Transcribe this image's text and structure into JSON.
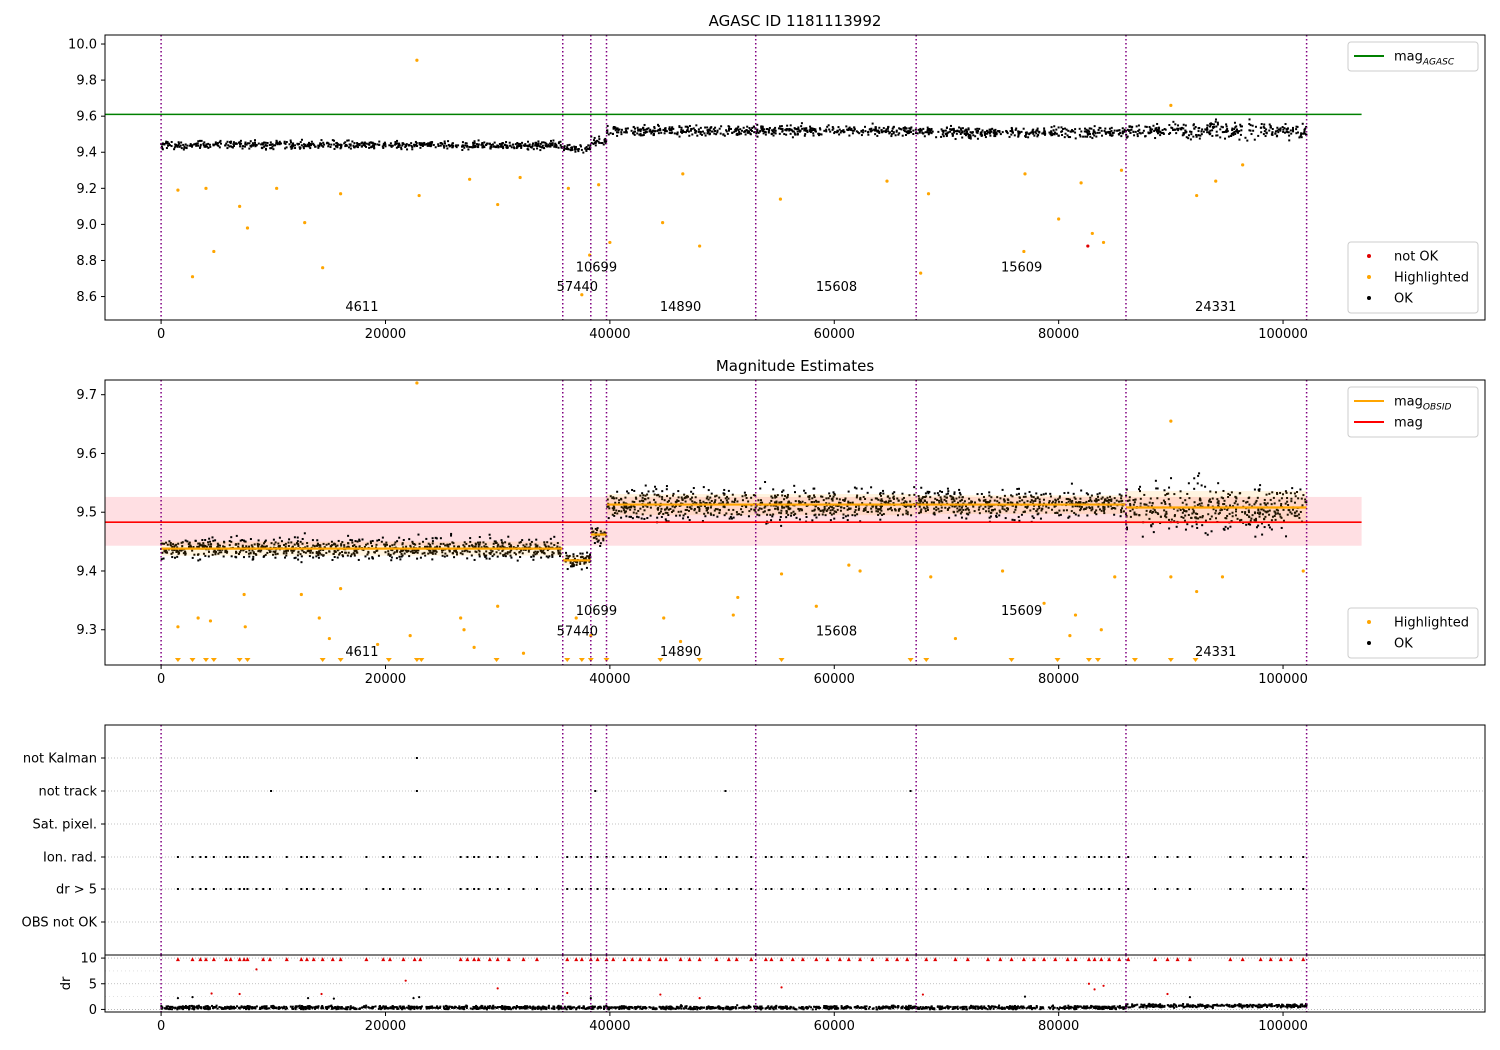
{
  "chart_data": [
    {
      "type": "scatter",
      "title": "AGASC ID 1181113992",
      "xlim": [
        -5000,
        118000
      ],
      "ylim": [
        8.47,
        10.05
      ],
      "xticks": [
        0,
        20000,
        40000,
        60000,
        80000,
        100000
      ],
      "yticks": [
        8.6,
        8.8,
        9.0,
        9.2,
        9.4,
        9.6,
        9.8,
        10.0
      ],
      "grid": false,
      "lines": [
        {
          "name": "mag_AGASC",
          "label_main": "mag",
          "label_sub": "AGASC",
          "y": 9.61,
          "x": [
            -5000,
            107000
          ],
          "color": "#008000"
        }
      ],
      "segments": [
        {
          "x": [
            0,
            35800
          ],
          "level": 9.44,
          "spread": 0.035
        },
        {
          "x": [
            35800,
            38300
          ],
          "level": 9.42,
          "spread": 0.03
        },
        {
          "x": [
            38300,
            39700
          ],
          "level": 9.46,
          "spread": 0.035
        },
        {
          "x": [
            39700,
            53000
          ],
          "level": 9.52,
          "spread": 0.045
        },
        {
          "x": [
            53000,
            67300
          ],
          "level": 9.52,
          "spread": 0.045
        },
        {
          "x": [
            67300,
            86000
          ],
          "level": 9.51,
          "spread": 0.045
        },
        {
          "x": [
            86000,
            102100
          ],
          "level": 9.52,
          "spread": 0.07
        }
      ],
      "highlighted_points": [
        {
          "x": 2800,
          "y": 8.71
        },
        {
          "x": 4700,
          "y": 8.85
        },
        {
          "x": 7700,
          "y": 8.98
        },
        {
          "x": 12800,
          "y": 9.01
        },
        {
          "x": 14400,
          "y": 8.76
        },
        {
          "x": 22800,
          "y": 9.91
        },
        {
          "x": 30000,
          "y": 9.11
        },
        {
          "x": 37500,
          "y": 8.61
        },
        {
          "x": 38200,
          "y": 8.83
        },
        {
          "x": 40000,
          "y": 8.9
        },
        {
          "x": 44700,
          "y": 9.01
        },
        {
          "x": 48000,
          "y": 8.88
        },
        {
          "x": 55200,
          "y": 9.14
        },
        {
          "x": 67700,
          "y": 8.73
        },
        {
          "x": 76900,
          "y": 8.85
        },
        {
          "x": 80000,
          "y": 9.03
        },
        {
          "x": 83000,
          "y": 8.95
        },
        {
          "x": 84000,
          "y": 8.9
        },
        {
          "x": 90000,
          "y": 9.66
        },
        {
          "x": 92300,
          "y": 9.16
        },
        {
          "x": 1500,
          "y": 9.19
        },
        {
          "x": 4000,
          "y": 9.2
        },
        {
          "x": 7000,
          "y": 9.1
        },
        {
          "x": 10300,
          "y": 9.2
        },
        {
          "x": 16000,
          "y": 9.17
        },
        {
          "x": 23000,
          "y": 9.16
        },
        {
          "x": 27500,
          "y": 9.25
        },
        {
          "x": 32000,
          "y": 9.26
        },
        {
          "x": 36300,
          "y": 9.2
        },
        {
          "x": 39000,
          "y": 9.22
        },
        {
          "x": 46500,
          "y": 9.28
        },
        {
          "x": 64700,
          "y": 9.24
        },
        {
          "x": 68400,
          "y": 9.17
        },
        {
          "x": 77000,
          "y": 9.28
        },
        {
          "x": 82000,
          "y": 9.23
        },
        {
          "x": 85600,
          "y": 9.3
        },
        {
          "x": 94000,
          "y": 9.24
        },
        {
          "x": 96400,
          "y": 9.33
        }
      ],
      "notok_points": [
        {
          "x": 82600,
          "y": 8.88
        }
      ],
      "obs_labels": [
        {
          "text": "4611",
          "x": 17900,
          "y": 8.52
        },
        {
          "text": "57440",
          "x": 37100,
          "y": 8.63
        },
        {
          "text": "10699",
          "x": 38800,
          "y": 8.74
        },
        {
          "text": "14890",
          "x": 46300,
          "y": 8.52
        },
        {
          "text": "15608",
          "x": 60200,
          "y": 8.63
        },
        {
          "text": "15609",
          "x": 76700,
          "y": 8.74
        },
        {
          "text": "24331",
          "x": 94000,
          "y": 8.52
        }
      ],
      "legends": [
        {
          "position": "upper right",
          "entries": [
            {
              "kind": "line",
              "color": "#008000",
              "label_main": "mag",
              "label_sub": "AGASC"
            }
          ]
        },
        {
          "position": "lower right",
          "entries": [
            {
              "kind": "dot",
              "color": "#e00000",
              "label": "not OK"
            },
            {
              "kind": "dot",
              "color": "#ffa500",
              "label": "Highlighted"
            },
            {
              "kind": "dot",
              "color": "#000000",
              "label": "OK"
            }
          ]
        }
      ]
    },
    {
      "type": "scatter",
      "title": "Magnitude Estimates",
      "xlim": [
        -5000,
        118000
      ],
      "ylim": [
        9.24,
        9.725
      ],
      "xticks": [
        0,
        20000,
        40000,
        60000,
        80000,
        100000
      ],
      "yticks": [
        9.3,
        9.4,
        9.5,
        9.6,
        9.7
      ],
      "grid": false,
      "mag_line": {
        "name": "mag",
        "y": 9.483,
        "band": [
          9.443,
          9.526
        ],
        "x": [
          -5000,
          107000
        ],
        "color": "#ff0000",
        "band_color": "#ffc0c8"
      },
      "obsid_mags": [
        {
          "x": [
            0,
            35800
          ],
          "mag": 9.438,
          "spread": 0.03
        },
        {
          "x": [
            35800,
            38300
          ],
          "mag": 9.418,
          "spread": 0.022
        },
        {
          "x": [
            38300,
            39700
          ],
          "mag": 9.462,
          "spread": 0.025
        },
        {
          "x": [
            39700,
            53000
          ],
          "mag": 9.513,
          "spread": 0.045
        },
        {
          "x": [
            53000,
            67300
          ],
          "mag": 9.513,
          "spread": 0.045
        },
        {
          "x": [
            67300,
            86000
          ],
          "mag": 9.513,
          "spread": 0.04
        },
        {
          "x": [
            86000,
            102100
          ],
          "mag": 9.508,
          "spread": 0.07
        }
      ],
      "highlighted_points": [
        {
          "x": 22800,
          "y": 9.72
        },
        {
          "x": 90000,
          "y": 9.655
        },
        {
          "x": 1500,
          "y": 9.305
        },
        {
          "x": 3300,
          "y": 9.32
        },
        {
          "x": 4400,
          "y": 9.315
        },
        {
          "x": 7400,
          "y": 9.36
        },
        {
          "x": 7500,
          "y": 9.305
        },
        {
          "x": 12500,
          "y": 9.36
        },
        {
          "x": 14100,
          "y": 9.32
        },
        {
          "x": 15000,
          "y": 9.285
        },
        {
          "x": 16000,
          "y": 9.37
        },
        {
          "x": 19300,
          "y": 9.275
        },
        {
          "x": 22200,
          "y": 9.29
        },
        {
          "x": 26700,
          "y": 9.32
        },
        {
          "x": 27000,
          "y": 9.3
        },
        {
          "x": 27900,
          "y": 9.27
        },
        {
          "x": 30000,
          "y": 9.34
        },
        {
          "x": 32300,
          "y": 9.26
        },
        {
          "x": 37000,
          "y": 9.32
        },
        {
          "x": 38300,
          "y": 9.29
        },
        {
          "x": 44800,
          "y": 9.32
        },
        {
          "x": 46300,
          "y": 9.28
        },
        {
          "x": 51400,
          "y": 9.355
        },
        {
          "x": 51000,
          "y": 9.325
        },
        {
          "x": 55300,
          "y": 9.395
        },
        {
          "x": 58400,
          "y": 9.34
        },
        {
          "x": 61300,
          "y": 9.41
        },
        {
          "x": 62300,
          "y": 9.4
        },
        {
          "x": 68600,
          "y": 9.39
        },
        {
          "x": 70800,
          "y": 9.285
        },
        {
          "x": 75000,
          "y": 9.4
        },
        {
          "x": 78700,
          "y": 9.345
        },
        {
          "x": 81000,
          "y": 9.29
        },
        {
          "x": 81500,
          "y": 9.325
        },
        {
          "x": 83800,
          "y": 9.3
        },
        {
          "x": 85000,
          "y": 9.39
        },
        {
          "x": 90000,
          "y": 9.39
        },
        {
          "x": 92300,
          "y": 9.365
        },
        {
          "x": 94600,
          "y": 9.39
        },
        {
          "x": 101800,
          "y": 9.4
        }
      ],
      "clipped_markers_x": [
        1500,
        2800,
        4000,
        4700,
        7000,
        7700,
        14400,
        16000,
        20300,
        22800,
        23200,
        29900,
        36200,
        37500,
        38300,
        39700,
        44500,
        48000,
        55300,
        66800,
        68200,
        75800,
        79900,
        82700,
        83500,
        86800,
        90000,
        92200
      ],
      "obs_labels": [
        {
          "text": "4611",
          "x": 17900,
          "y": 9.255
        },
        {
          "text": "57440",
          "x": 37100,
          "y": 9.29
        },
        {
          "text": "10699",
          "x": 38800,
          "y": 9.325
        },
        {
          "text": "14890",
          "x": 46300,
          "y": 9.255
        },
        {
          "text": "15608",
          "x": 60200,
          "y": 9.29
        },
        {
          "text": "15609",
          "x": 76700,
          "y": 9.325
        },
        {
          "text": "24331",
          "x": 94000,
          "y": 9.255
        }
      ],
      "legends": [
        {
          "position": "upper right",
          "entries": [
            {
              "kind": "line",
              "color": "#ffa500",
              "label_main": "mag",
              "label_sub": "OBSID"
            },
            {
              "kind": "line",
              "color": "#ff0000",
              "label_main": "mag",
              "label_sub": ""
            }
          ]
        },
        {
          "position": "lower right",
          "entries": [
            {
              "kind": "dot",
              "color": "#ffa500",
              "label": "Highlighted"
            },
            {
              "kind": "dot",
              "color": "#000000",
              "label": "OK"
            }
          ]
        }
      ]
    },
    {
      "type": "scatter",
      "title": "",
      "xlim": [
        -5000,
        118000
      ],
      "categories": [
        "not Kalman",
        "not track",
        "Sat. pixel.",
        "Ion. rad.",
        "dr > 5",
        "OBS not OK"
      ],
      "grid": true,
      "flags": {
        "not Kalman": [
          22800
        ],
        "not track": [
          9800,
          22800,
          38700,
          50300,
          66800
        ],
        "Ion. rad.": [
          1500,
          2800,
          3500,
          4000,
          4700,
          5800,
          6200,
          7000,
          7400,
          7700,
          8500,
          9100,
          9700,
          11200,
          12500,
          13000,
          13600,
          14400,
          15300,
          16000,
          18300,
          19800,
          20400,
          21600,
          22600,
          23100,
          26700,
          27300,
          27900,
          28300,
          29300,
          30000,
          31000,
          32300,
          33500,
          36200,
          37000,
          37500,
          38300,
          38900,
          39700,
          40300,
          41300,
          42000,
          42700,
          43500,
          44500,
          45000,
          46300,
          47100,
          48000,
          49500,
          50600,
          51300,
          52600,
          53900,
          54400,
          55300,
          56300,
          57200,
          58400,
          59400,
          60500,
          61300,
          62300,
          63400,
          64700,
          65600,
          66500,
          68200,
          69000,
          70800,
          71900,
          73700,
          74800,
          75800,
          76900,
          77800,
          78700,
          79700,
          80800,
          81500,
          82700,
          83200,
          83800,
          84500,
          85400,
          86200,
          88600,
          89700,
          90600,
          91700,
          95300,
          96400,
          98000,
          98900,
          99800,
          100700,
          101800
        ],
        "dr > 5": [
          1500,
          2800,
          3500,
          4000,
          4700,
          5800,
          6200,
          7000,
          7400,
          7700,
          8500,
          9100,
          9700,
          11200,
          12500,
          13000,
          13600,
          14400,
          15300,
          16000,
          18300,
          19800,
          20400,
          21600,
          22600,
          23100,
          26700,
          27300,
          27900,
          28300,
          29300,
          30000,
          31000,
          32300,
          33500,
          36200,
          37000,
          37500,
          38300,
          38900,
          39700,
          40300,
          41300,
          42000,
          42700,
          43500,
          44500,
          45000,
          46300,
          47100,
          48000,
          49500,
          50600,
          51300,
          52600,
          53900,
          54400,
          55300,
          56300,
          57200,
          58400,
          59400,
          60500,
          61300,
          62300,
          63400,
          64700,
          65600,
          66500,
          68200,
          69000,
          70800,
          71900,
          73700,
          74800,
          75800,
          76900,
          77800,
          78700,
          79700,
          80800,
          81500,
          82700,
          83200,
          83800,
          84500,
          85400,
          86200,
          88600,
          89700,
          90600,
          91700,
          95300,
          96400,
          98000,
          98900,
          99800,
          100700,
          101800
        ]
      }
    },
    {
      "type": "scatter",
      "title": "",
      "xlim": [
        -5000,
        118000
      ],
      "ylim": [
        -0.5,
        10.6
      ],
      "xticks": [
        0,
        20000,
        40000,
        60000,
        80000,
        100000
      ],
      "yticks": [
        0,
        5,
        10
      ],
      "ylabel": "dr",
      "grid": true,
      "dr_high_x": [
        1500,
        2800,
        3500,
        4000,
        4700,
        5800,
        6200,
        7000,
        7400,
        7700,
        9100,
        9700,
        11200,
        12500,
        13000,
        13600,
        14400,
        15300,
        16000,
        18300,
        19800,
        20400,
        21600,
        22600,
        23100,
        26700,
        27300,
        27900,
        28300,
        29300,
        30000,
        31000,
        32300,
        33500,
        36200,
        37000,
        37500,
        38300,
        38900,
        39700,
        40300,
        41300,
        42000,
        42700,
        43500,
        44500,
        45000,
        46300,
        47100,
        48000,
        49500,
        50600,
        51300,
        52600,
        53900,
        54400,
        55300,
        56300,
        57200,
        58400,
        59400,
        60500,
        61300,
        62300,
        63400,
        64700,
        65600,
        66500,
        68200,
        69000,
        70800,
        71900,
        73700,
        74800,
        75800,
        76900,
        77800,
        78700,
        79700,
        80800,
        81500,
        82700,
        83200,
        83800,
        84500,
        85400,
        86200,
        88600,
        89700,
        90600,
        91700,
        95300,
        96400,
        98000,
        98900,
        99800,
        100700,
        101800
      ],
      "dr_mid_points": [
        {
          "x": 8500,
          "y": 7.8,
          "color": "#e00000"
        },
        {
          "x": 21800,
          "y": 5.6,
          "color": "#e00000"
        },
        {
          "x": 1500,
          "y": 2.2,
          "color": "#000000"
        },
        {
          "x": 2800,
          "y": 2.4,
          "color": "#000000"
        },
        {
          "x": 4500,
          "y": 3.1,
          "color": "#e00000"
        },
        {
          "x": 7000,
          "y": 3.0,
          "color": "#e00000"
        },
        {
          "x": 13100,
          "y": 2.2,
          "color": "#000000"
        },
        {
          "x": 14300,
          "y": 3.0,
          "color": "#e00000"
        },
        {
          "x": 15400,
          "y": 2.1,
          "color": "#000000"
        },
        {
          "x": 22500,
          "y": 2.2,
          "color": "#000000"
        },
        {
          "x": 23000,
          "y": 2.4,
          "color": "#000000"
        },
        {
          "x": 30000,
          "y": 4.1,
          "color": "#e00000"
        },
        {
          "x": 36200,
          "y": 3.2,
          "color": "#e00000"
        },
        {
          "x": 38300,
          "y": 2.2,
          "color": "#000000"
        },
        {
          "x": 44500,
          "y": 2.9,
          "color": "#e00000"
        },
        {
          "x": 48000,
          "y": 2.2,
          "color": "#e00000"
        },
        {
          "x": 55300,
          "y": 4.3,
          "color": "#e00000"
        },
        {
          "x": 67900,
          "y": 2.9,
          "color": "#e00000"
        },
        {
          "x": 77000,
          "y": 2.5,
          "color": "#000000"
        },
        {
          "x": 82700,
          "y": 5.0,
          "color": "#e00000"
        },
        {
          "x": 83200,
          "y": 3.9,
          "color": "#e00000"
        },
        {
          "x": 84000,
          "y": 4.6,
          "color": "#e00000"
        },
        {
          "x": 89700,
          "y": 3.0,
          "color": "#e00000"
        },
        {
          "x": 91700,
          "y": 2.4,
          "color": "#000000"
        }
      ]
    }
  ],
  "obs_boundaries_x": [
    0,
    35800,
    38300,
    39700,
    53000,
    67300,
    86000,
    102100
  ]
}
